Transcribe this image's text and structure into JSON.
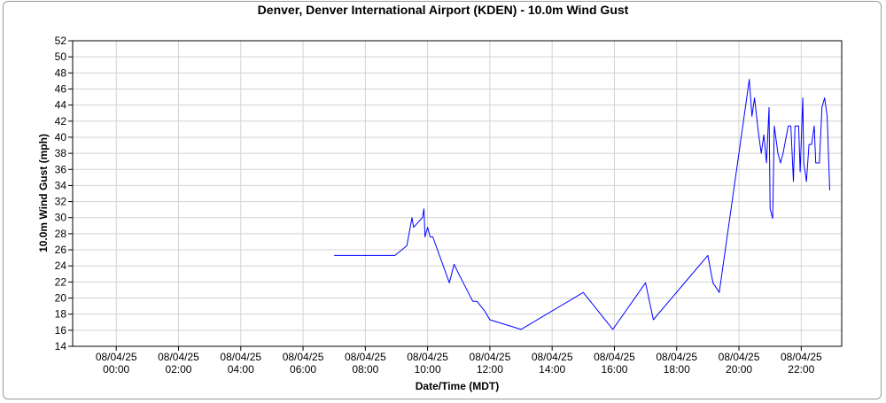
{
  "chart_data": {
    "type": "line",
    "title": "Denver, Denver International Airport (KDEN) - 10.0m Wind Gust",
    "xlabel": "Date/Time (MDT)",
    "ylabel": "10.0m Wind Gust (mph)",
    "ylim": [
      14,
      52
    ],
    "xlim_hours": [
      -1.4,
      23.3
    ],
    "yticks": [
      14,
      16,
      18,
      20,
      22,
      24,
      26,
      28,
      30,
      32,
      34,
      36,
      38,
      40,
      42,
      44,
      46,
      48,
      50,
      52
    ],
    "xticks": [
      {
        "hour": 0,
        "date": "08/04/25",
        "time": "00:00"
      },
      {
        "hour": 2,
        "date": "08/04/25",
        "time": "02:00"
      },
      {
        "hour": 4,
        "date": "08/04/25",
        "time": "04:00"
      },
      {
        "hour": 6,
        "date": "08/04/25",
        "time": "06:00"
      },
      {
        "hour": 8,
        "date": "08/04/25",
        "time": "08:00"
      },
      {
        "hour": 10,
        "date": "08/04/25",
        "time": "10:00"
      },
      {
        "hour": 12,
        "date": "08/04/25",
        "time": "12:00"
      },
      {
        "hour": 14,
        "date": "08/04/25",
        "time": "14:00"
      },
      {
        "hour": 16,
        "date": "08/04/25",
        "time": "16:00"
      },
      {
        "hour": 18,
        "date": "08/04/25",
        "time": "18:00"
      },
      {
        "hour": 20,
        "date": "08/04/25",
        "time": "20:00"
      },
      {
        "hour": 22,
        "date": "08/04/25",
        "time": "22:00"
      }
    ],
    "grid": true,
    "series": [
      {
        "color": "#0000ff",
        "points": [
          {
            "t": "07:00",
            "y": 25.3
          },
          {
            "t": "08:57",
            "y": 25.3
          },
          {
            "t": "09:20",
            "y": 26.5
          },
          {
            "t": "09:30",
            "y": 30.0
          },
          {
            "t": "09:33",
            "y": 28.8
          },
          {
            "t": "09:50",
            "y": 30.0
          },
          {
            "t": "09:53",
            "y": 31.1
          },
          {
            "t": "09:55",
            "y": 27.6
          },
          {
            "t": "10:00",
            "y": 28.8
          },
          {
            "t": "10:05",
            "y": 27.6
          },
          {
            "t": "10:10",
            "y": 27.6
          },
          {
            "t": "10:42",
            "y": 21.9
          },
          {
            "t": "10:51",
            "y": 24.2
          },
          {
            "t": "11:00",
            "y": 23.0
          },
          {
            "t": "11:27",
            "y": 19.6
          },
          {
            "t": "11:35",
            "y": 19.6
          },
          {
            "t": "11:50",
            "y": 18.4
          },
          {
            "t": "12:00",
            "y": 17.3
          },
          {
            "t": "13:00",
            "y": 16.1
          },
          {
            "t": "15:00",
            "y": 20.7
          },
          {
            "t": "15:57",
            "y": 16.1
          },
          {
            "t": "17:00",
            "y": 21.9
          },
          {
            "t": "17:15",
            "y": 17.3
          },
          {
            "t": "19:00",
            "y": 25.3
          },
          {
            "t": "19:10",
            "y": 21.9
          },
          {
            "t": "19:22",
            "y": 20.7
          },
          {
            "t": "20:00",
            "y": 38.0
          },
          {
            "t": "20:15",
            "y": 44.9
          },
          {
            "t": "20:20",
            "y": 47.2
          },
          {
            "t": "20:25",
            "y": 42.6
          },
          {
            "t": "20:30",
            "y": 44.9
          },
          {
            "t": "20:38",
            "y": 40.3
          },
          {
            "t": "20:43",
            "y": 38.0
          },
          {
            "t": "20:48",
            "y": 40.3
          },
          {
            "t": "20:53",
            "y": 36.8
          },
          {
            "t": "20:58",
            "y": 43.7
          },
          {
            "t": "21:00",
            "y": 31.1
          },
          {
            "t": "21:05",
            "y": 29.9
          },
          {
            "t": "21:08",
            "y": 41.4
          },
          {
            "t": "21:15",
            "y": 38.0
          },
          {
            "t": "21:20",
            "y": 36.8
          },
          {
            "t": "21:25",
            "y": 38.0
          },
          {
            "t": "21:35",
            "y": 41.4
          },
          {
            "t": "21:40",
            "y": 41.4
          },
          {
            "t": "21:45",
            "y": 34.5
          },
          {
            "t": "21:48",
            "y": 41.4
          },
          {
            "t": "21:55",
            "y": 41.4
          },
          {
            "t": "21:58",
            "y": 35.7
          },
          {
            "t": "22:03",
            "y": 44.9
          },
          {
            "t": "22:05",
            "y": 36.8
          },
          {
            "t": "22:10",
            "y": 34.5
          },
          {
            "t": "22:15",
            "y": 39.1
          },
          {
            "t": "22:20",
            "y": 39.1
          },
          {
            "t": "22:25",
            "y": 41.4
          },
          {
            "t": "22:28",
            "y": 36.8
          },
          {
            "t": "22:35",
            "y": 36.8
          },
          {
            "t": "22:40",
            "y": 43.7
          },
          {
            "t": "22:45",
            "y": 44.9
          },
          {
            "t": "22:50",
            "y": 42.6
          },
          {
            "t": "22:55",
            "y": 33.4
          }
        ]
      }
    ]
  }
}
